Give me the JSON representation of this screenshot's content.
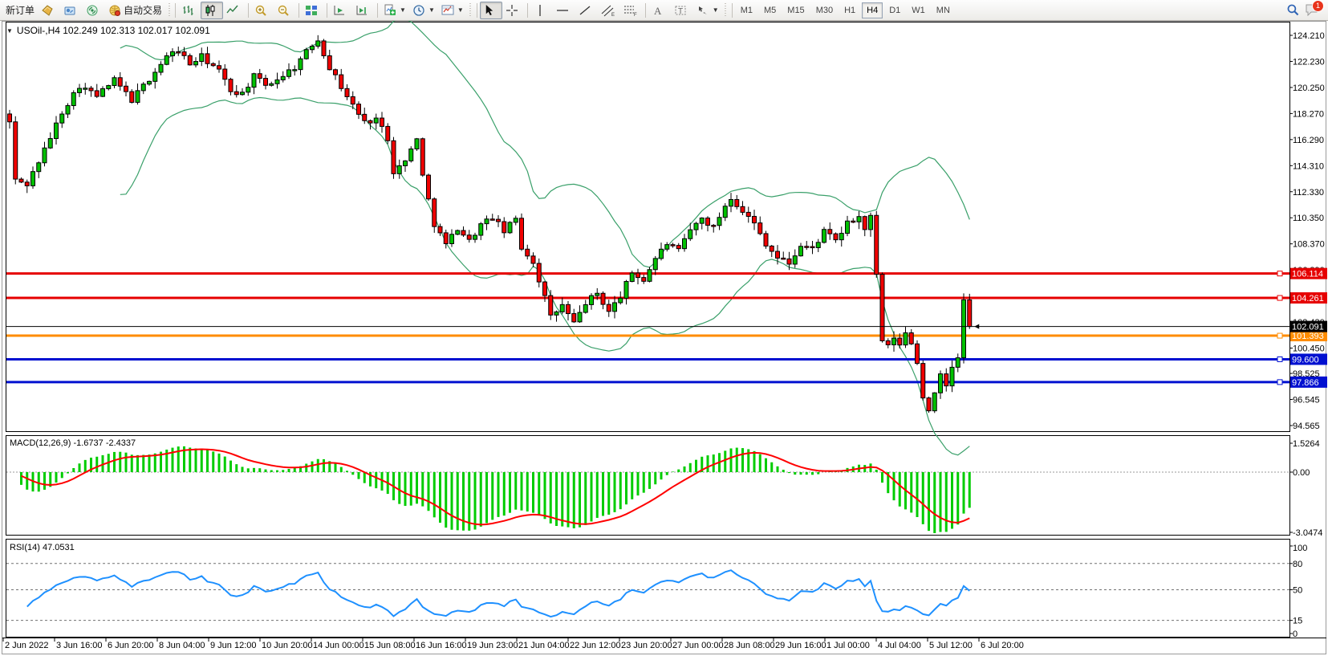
{
  "toolbar": {
    "new_order_label": "新订单",
    "autotrading_label": "自动交易",
    "notification_badge": "1",
    "timeframes": [
      {
        "label": "M1"
      },
      {
        "label": "M5"
      },
      {
        "label": "M15"
      },
      {
        "label": "M30"
      },
      {
        "label": "H1"
      },
      {
        "label": "H4",
        "active": true
      },
      {
        "label": "D1"
      },
      {
        "label": "W1"
      },
      {
        "label": "MN"
      }
    ]
  },
  "chart": {
    "title": "USOil-,H4  102.249 102.313 102.017 102.091"
  },
  "chart_data": {
    "type": "candlestick",
    "symbol": "USOil-",
    "timeframe": "H4",
    "ohlc": {
      "open": "102.249",
      "high": "102.313",
      "low": "102.017",
      "close": "102.091"
    },
    "price_axis_ticks": [
      "124.210",
      "122.230",
      "120.250",
      "118.270",
      "116.290",
      "114.310",
      "112.330",
      "110.350",
      "108.370",
      "106.390",
      "104.410",
      "102.430",
      "100.450",
      "98.525",
      "96.545",
      "94.565"
    ],
    "x_labels": [
      "2 Jun 2022",
      "3 Jun 16:00",
      "6 Jun 20:00",
      "8 Jun 04:00",
      "9 Jun 12:00",
      "10 Jun 20:00",
      "14 Jun 00:00",
      "15 Jun 08:00",
      "16 Jun 16:00",
      "19 Jun 23:00",
      "21 Jun 04:00",
      "22 Jun 12:00",
      "23 Jun 20:00",
      "27 Jun 00:00",
      "28 Jun 08:00",
      "29 Jun 16:00",
      "1 Jul 00:00",
      "4 Jul 04:00",
      "5 Jul 12:00",
      "6 Jul 20:00"
    ],
    "hlines": [
      {
        "price": 106.114,
        "label": "106.114",
        "color": "#e60000",
        "width": 3
      },
      {
        "price": 104.261,
        "label": "104.261",
        "color": "#e60000",
        "width": 3
      },
      {
        "price": 101.393,
        "label": "101.393",
        "color": "#ff8c00",
        "width": 3
      },
      {
        "price": 99.6,
        "label": "99.600",
        "color": "#0010d0",
        "width": 3
      },
      {
        "price": 97.866,
        "label": "97.866",
        "color": "#0010d0",
        "width": 3
      }
    ],
    "current_price": {
      "price": 102.091,
      "label": "102.091",
      "color": "#000000"
    },
    "bars": 166,
    "anchors": [
      [
        0,
        117.6
      ],
      [
        1,
        113.2
      ],
      [
        3,
        112.9
      ],
      [
        6,
        115.5
      ],
      [
        9,
        118.4
      ],
      [
        12,
        120.4
      ],
      [
        15,
        119.6
      ],
      [
        18,
        120.8
      ],
      [
        21,
        119.3
      ],
      [
        24,
        120.9
      ],
      [
        27,
        122.6
      ],
      [
        29,
        123.1
      ],
      [
        31,
        122.0
      ],
      [
        33,
        122.6
      ],
      [
        36,
        121.5
      ],
      [
        38,
        120.0
      ],
      [
        40,
        119.8
      ],
      [
        42,
        121.1
      ],
      [
        44,
        120.4
      ],
      [
        46,
        120.9
      ],
      [
        49,
        121.8
      ],
      [
        52,
        123.5
      ],
      [
        53,
        123.9
      ],
      [
        55,
        121.8
      ],
      [
        57,
        120.3
      ],
      [
        59,
        118.9
      ],
      [
        61,
        117.6
      ],
      [
        63,
        117.9
      ],
      [
        65,
        116.4
      ],
      [
        66,
        113.9
      ],
      [
        68,
        114.6
      ],
      [
        70,
        116.5
      ],
      [
        71,
        113.5
      ],
      [
        73,
        109.9
      ],
      [
        75,
        108.3
      ],
      [
        77,
        109.6
      ],
      [
        79,
        108.6
      ],
      [
        81,
        109.8
      ],
      [
        83,
        110.4
      ],
      [
        85,
        109.3
      ],
      [
        87,
        110.3
      ],
      [
        88,
        108.1
      ],
      [
        90,
        107.0
      ],
      [
        92,
        104.3
      ],
      [
        93,
        102.8
      ],
      [
        95,
        103.7
      ],
      [
        97,
        102.3
      ],
      [
        99,
        103.9
      ],
      [
        101,
        104.6
      ],
      [
        103,
        103.2
      ],
      [
        105,
        104.4
      ],
      [
        107,
        106.2
      ],
      [
        109,
        105.6
      ],
      [
        111,
        107.3
      ],
      [
        113,
        108.4
      ],
      [
        115,
        107.8
      ],
      [
        117,
        109.4
      ],
      [
        119,
        110.3
      ],
      [
        121,
        109.6
      ],
      [
        123,
        111.3
      ],
      [
        124,
        111.9
      ],
      [
        126,
        110.9
      ],
      [
        128,
        109.9
      ],
      [
        130,
        108.4
      ],
      [
        132,
        107.3
      ],
      [
        134,
        106.9
      ],
      [
        136,
        108.2
      ],
      [
        138,
        108.0
      ],
      [
        140,
        109.3
      ],
      [
        142,
        108.6
      ],
      [
        144,
        109.9
      ],
      [
        146,
        110.4
      ],
      [
        147,
        109.5
      ],
      [
        148,
        110.4
      ],
      [
        149,
        105.9
      ],
      [
        150,
        101.0
      ],
      [
        151,
        100.5
      ],
      [
        152,
        101.3
      ],
      [
        153,
        100.6
      ],
      [
        154,
        101.6
      ],
      [
        155,
        100.9
      ],
      [
        156,
        99.3
      ],
      [
        157,
        96.8
      ],
      [
        158,
        95.8
      ],
      [
        159,
        96.9
      ],
      [
        160,
        98.3
      ],
      [
        161,
        97.6
      ],
      [
        162,
        99.1
      ],
      [
        163,
        99.6
      ],
      [
        164,
        104.1
      ],
      [
        165,
        102.091
      ]
    ],
    "bollinger": {
      "period": 20,
      "deviation": 2,
      "color": "#3aa06a"
    },
    "colors": {
      "up": "#00c000",
      "down": "#f00000",
      "wick": "#000000",
      "macd_hist": "#00cc00",
      "macd_signal": "#ff0000",
      "rsi": "#1e90ff"
    },
    "indicators": [
      {
        "name": "MACD",
        "label": "MACD(12,26,9) -1.6737 -2.4337",
        "fast": 12,
        "slow": 26,
        "signal": 9,
        "axis": [
          "1.5264",
          "0.00",
          "-3.0474"
        ]
      },
      {
        "name": "RSI",
        "label": "RSI(14) 47.0531",
        "period": 14,
        "levels": [
          80,
          50,
          15
        ],
        "axis": [
          {
            "v": 100,
            "t": "100"
          },
          {
            "v": 80,
            "t": "80"
          },
          {
            "v": 50,
            "t": "50"
          },
          {
            "v": 15,
            "t": "15"
          },
          {
            "v": 0,
            "t": "0"
          }
        ]
      }
    ]
  }
}
